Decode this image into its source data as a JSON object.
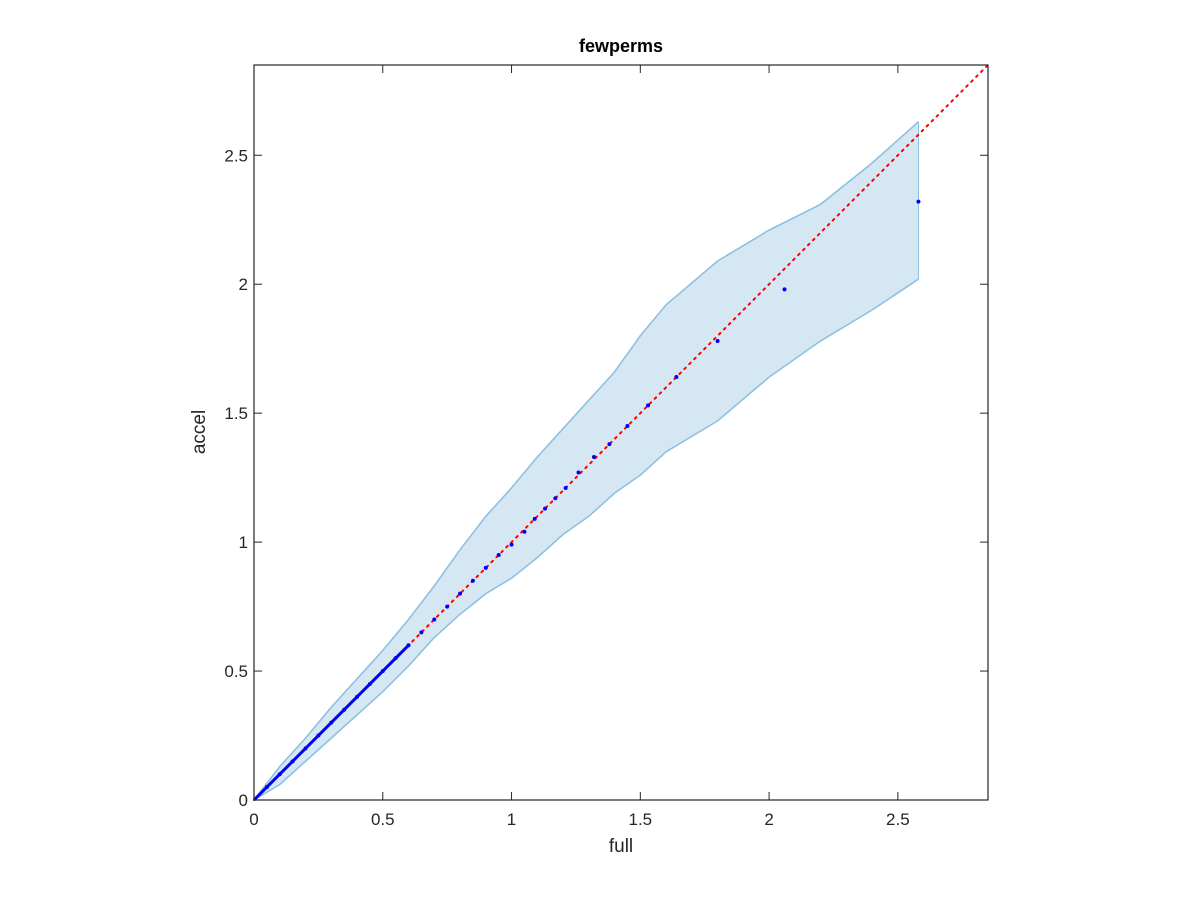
{
  "chart_data": {
    "type": "scatter",
    "title": "fewperms",
    "xlabel": "full",
    "ylabel": "accel",
    "xlim": [
      0,
      2.85
    ],
    "ylim": [
      0,
      2.85
    ],
    "xticks": [
      0,
      0.5,
      1,
      1.5,
      2,
      2.5
    ],
    "yticks": [
      0,
      0.5,
      1,
      1.5,
      2,
      2.5
    ],
    "xtick_labels": [
      "0",
      "0.5",
      "1",
      "1.5",
      "2",
      "2.5"
    ],
    "ytick_labels": [
      "0",
      "0.5",
      "1",
      "1.5",
      "2",
      "2.5"
    ],
    "grid": false,
    "box": true,
    "colors": {
      "band_fill": "#d6e7f4",
      "band_edge": "#8cc1e2",
      "points": "#0000ff",
      "diagonal": "#ff0000",
      "axes": "#262626"
    },
    "reference_line": {
      "style": "dotted",
      "from": [
        0,
        0
      ],
      "to": [
        2.85,
        2.85
      ]
    },
    "band": {
      "upper": [
        [
          0,
          0
        ],
        [
          0.1,
          0.13
        ],
        [
          0.2,
          0.24
        ],
        [
          0.3,
          0.36
        ],
        [
          0.4,
          0.47
        ],
        [
          0.5,
          0.58
        ],
        [
          0.6,
          0.7
        ],
        [
          0.7,
          0.83
        ],
        [
          0.8,
          0.97
        ],
        [
          0.9,
          1.1
        ],
        [
          1.0,
          1.21
        ],
        [
          1.1,
          1.33
        ],
        [
          1.2,
          1.44
        ],
        [
          1.3,
          1.55
        ],
        [
          1.4,
          1.66
        ],
        [
          1.5,
          1.8
        ],
        [
          1.6,
          1.92
        ],
        [
          1.8,
          2.09
        ],
        [
          2.0,
          2.21
        ],
        [
          2.2,
          2.31
        ],
        [
          2.4,
          2.47
        ],
        [
          2.58,
          2.63
        ]
      ],
      "lower": [
        [
          0,
          0
        ],
        [
          0.1,
          0.06
        ],
        [
          0.2,
          0.15
        ],
        [
          0.3,
          0.24
        ],
        [
          0.4,
          0.33
        ],
        [
          0.5,
          0.42
        ],
        [
          0.6,
          0.52
        ],
        [
          0.7,
          0.63
        ],
        [
          0.8,
          0.72
        ],
        [
          0.9,
          0.8
        ],
        [
          1.0,
          0.86
        ],
        [
          1.1,
          0.94
        ],
        [
          1.2,
          1.03
        ],
        [
          1.3,
          1.1
        ],
        [
          1.4,
          1.19
        ],
        [
          1.5,
          1.26
        ],
        [
          1.6,
          1.35
        ],
        [
          1.8,
          1.47
        ],
        [
          2.0,
          1.64
        ],
        [
          2.2,
          1.78
        ],
        [
          2.4,
          1.9
        ],
        [
          2.58,
          2.02
        ]
      ]
    },
    "series": [
      {
        "x": [
          0.05,
          0.1,
          0.15,
          0.2,
          0.25,
          0.3,
          0.35,
          0.4,
          0.45,
          0.5,
          0.55,
          0.6,
          0.65,
          0.7,
          0.75,
          0.8,
          0.85,
          0.9,
          0.95,
          1.0,
          1.05,
          1.09,
          1.13,
          1.17,
          1.21,
          1.26,
          1.32,
          1.38,
          1.45,
          1.53,
          1.64,
          1.8,
          2.06,
          2.58
        ],
        "y": [
          0.05,
          0.1,
          0.15,
          0.2,
          0.25,
          0.3,
          0.35,
          0.4,
          0.45,
          0.5,
          0.55,
          0.6,
          0.65,
          0.7,
          0.75,
          0.8,
          0.85,
          0.9,
          0.95,
          0.99,
          1.04,
          1.09,
          1.13,
          1.17,
          1.21,
          1.27,
          1.33,
          1.38,
          1.45,
          1.53,
          1.64,
          1.78,
          1.98,
          2.32
        ]
      }
    ]
  }
}
